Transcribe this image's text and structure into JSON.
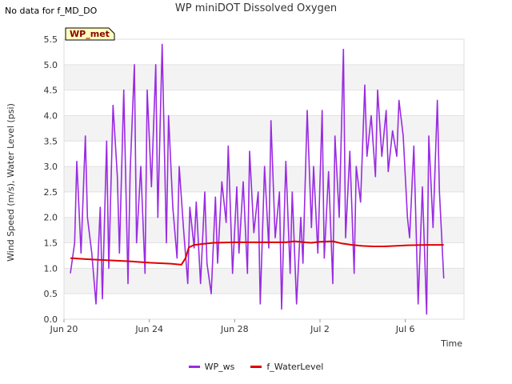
{
  "note": "No data for f_MD_DO",
  "chart_data": {
    "type": "line",
    "title": "WP miniDOT Dissolved Oxygen",
    "xlabel": "Time",
    "ylabel": "Wind Speed (m/s), Water Level (psi)",
    "ylim": [
      0,
      5.5
    ],
    "xlim_days": [
      0,
      18.75
    ],
    "y_ticks": [
      "0.0",
      "0.5",
      "1.0",
      "1.5",
      "2.0",
      "2.5",
      "3.0",
      "3.5",
      "4.0",
      "4.5",
      "5.0",
      "5.5"
    ],
    "x_ticks": [
      {
        "day": 0,
        "label": "Jun 20"
      },
      {
        "day": 4,
        "label": "Jun 24"
      },
      {
        "day": 8,
        "label": "Jun 28"
      },
      {
        "day": 12,
        "label": "Jul 2"
      },
      {
        "day": 16,
        "label": "Jul 6"
      }
    ],
    "site_label": "WP_met",
    "legend_position": "bottom",
    "grid": true,
    "series": [
      {
        "name": "WP_ws",
        "color": "#9a2be2",
        "x": [
          0.3,
          0.5,
          0.6,
          0.8,
          1.0,
          1.1,
          1.3,
          1.5,
          1.7,
          1.8,
          2.0,
          2.1,
          2.3,
          2.5,
          2.6,
          2.8,
          3.0,
          3.1,
          3.3,
          3.4,
          3.6,
          3.8,
          3.9,
          4.1,
          4.3,
          4.4,
          4.6,
          4.8,
          4.9,
          5.1,
          5.3,
          5.4,
          5.6,
          5.8,
          5.9,
          6.1,
          6.2,
          6.4,
          6.6,
          6.7,
          6.9,
          7.1,
          7.2,
          7.4,
          7.6,
          7.7,
          7.9,
          8.1,
          8.2,
          8.4,
          8.6,
          8.7,
          8.9,
          9.1,
          9.2,
          9.4,
          9.6,
          9.7,
          9.9,
          10.1,
          10.2,
          10.4,
          10.6,
          10.7,
          10.9,
          11.1,
          11.2,
          11.4,
          11.6,
          11.7,
          11.9,
          12.1,
          12.2,
          12.4,
          12.6,
          12.7,
          12.9,
          13.1,
          13.2,
          13.4,
          13.6,
          13.7,
          13.9,
          14.1,
          14.2,
          14.4,
          14.6,
          14.7,
          14.9,
          15.1,
          15.2,
          15.4,
          15.6,
          15.7,
          15.9,
          16.1,
          16.2,
          16.4,
          16.6,
          16.8,
          17.0,
          17.1,
          17.3,
          17.5,
          17.6,
          17.8
        ],
        "values": [
          0.9,
          1.5,
          3.1,
          1.3,
          3.6,
          2.0,
          1.3,
          0.3,
          2.2,
          0.4,
          3.5,
          1.0,
          4.2,
          2.8,
          1.3,
          4.5,
          0.7,
          2.9,
          5.0,
          1.5,
          3.0,
          0.9,
          4.5,
          2.6,
          5.0,
          2.0,
          5.4,
          1.5,
          4.0,
          2.2,
          1.2,
          3.0,
          1.8,
          0.7,
          2.2,
          1.4,
          2.3,
          0.7,
          2.5,
          1.1,
          0.5,
          2.4,
          1.1,
          2.7,
          1.9,
          3.4,
          0.9,
          2.6,
          1.3,
          2.7,
          0.9,
          3.3,
          1.7,
          2.5,
          0.3,
          3.0,
          1.4,
          3.9,
          1.6,
          2.5,
          0.2,
          3.1,
          0.9,
          2.5,
          0.3,
          2.0,
          1.1,
          4.1,
          1.8,
          3.0,
          1.3,
          4.1,
          1.2,
          2.9,
          0.7,
          3.6,
          2.0,
          5.3,
          1.6,
          3.3,
          0.9,
          3.0,
          2.3,
          4.6,
          3.2,
          4.0,
          2.8,
          4.5,
          3.2,
          4.1,
          2.9,
          3.7,
          3.2,
          4.3,
          3.6,
          2.0,
          1.6,
          3.4,
          0.3,
          2.6,
          0.1,
          3.6,
          1.8,
          4.3,
          2.5,
          0.8
        ]
      },
      {
        "name": "f_WaterLevel",
        "color": "#e00000",
        "x": [
          0.3,
          1.0,
          2.0,
          3.0,
          4.0,
          5.0,
          5.5,
          5.7,
          5.85,
          6.1,
          7.0,
          8.0,
          9.0,
          10.0,
          10.4,
          10.8,
          11.3,
          11.6,
          12.0,
          12.6,
          13.0,
          13.5,
          14.0,
          14.5,
          15.0,
          16.0,
          17.0,
          17.8
        ],
        "values": [
          1.2,
          1.18,
          1.16,
          1.14,
          1.11,
          1.09,
          1.07,
          1.2,
          1.41,
          1.46,
          1.5,
          1.51,
          1.51,
          1.51,
          1.51,
          1.53,
          1.51,
          1.5,
          1.52,
          1.53,
          1.49,
          1.46,
          1.44,
          1.43,
          1.43,
          1.45,
          1.46,
          1.46
        ]
      }
    ]
  }
}
